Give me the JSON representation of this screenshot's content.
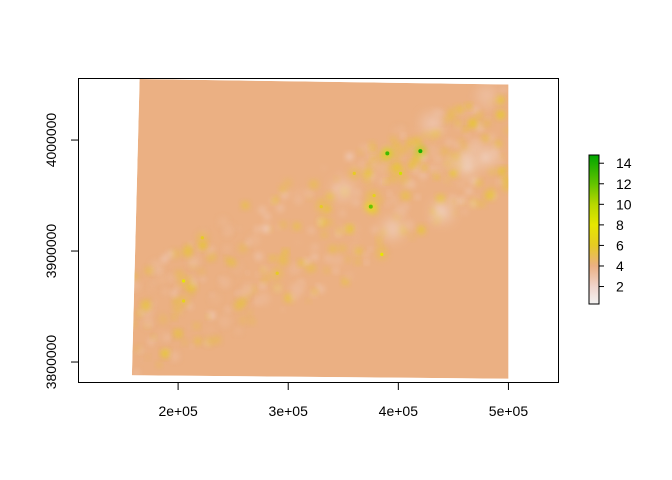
{
  "chart_data": {
    "type": "heatmap",
    "title": "",
    "xlabel": "",
    "ylabel": "",
    "xlim": [
      110000,
      545000
    ],
    "ylim": [
      3782000,
      4055000
    ],
    "x_ticks": [
      200000,
      300000,
      400000,
      500000
    ],
    "x_tick_labels": [
      "2e+05",
      "3e+05",
      "4e+05",
      "5e+05"
    ],
    "y_ticks": [
      3800000,
      3900000,
      4000000
    ],
    "y_tick_labels": [
      "3800000",
      "3900000",
      "4000000"
    ],
    "raster_extent": {
      "corners": [
        [
          165000,
          4055000
        ],
        [
          500000,
          4050000
        ],
        [
          500000,
          3785000
        ],
        [
          158000,
          3788000
        ]
      ]
    },
    "background_value": 4,
    "colorbar": {
      "range": [
        0.3,
        14.8
      ],
      "ticks": [
        2,
        4,
        6,
        8,
        10,
        12,
        14
      ],
      "tick_labels": [
        "2",
        "4",
        "6",
        "8",
        "10",
        "12",
        "14"
      ],
      "stops": [
        {
          "value": 0.3,
          "color": "#f2f2f2"
        },
        {
          "value": 2,
          "color": "#f1d4cc"
        },
        {
          "value": 4,
          "color": "#ebb083"
        },
        {
          "value": 6,
          "color": "#e6cb23"
        },
        {
          "value": 8,
          "color": "#e6e600"
        },
        {
          "value": 10,
          "color": "#b8d800"
        },
        {
          "value": 12,
          "color": "#63c300"
        },
        {
          "value": 14.8,
          "color": "#00a600"
        }
      ]
    },
    "hotspots": [
      {
        "x": 390000,
        "y": 3988000,
        "value": 13
      },
      {
        "x": 420000,
        "y": 3990000,
        "value": 14
      },
      {
        "x": 375000,
        "y": 3940000,
        "value": 12
      },
      {
        "x": 402000,
        "y": 3970000,
        "value": 9
      },
      {
        "x": 385000,
        "y": 3897000,
        "value": 8
      },
      {
        "x": 205000,
        "y": 3873000,
        "value": 8
      },
      {
        "x": 205000,
        "y": 3855000,
        "value": 6.5
      },
      {
        "x": 222000,
        "y": 3912000,
        "value": 6
      },
      {
        "x": 378000,
        "y": 3950000,
        "value": 6.5
      },
      {
        "x": 360000,
        "y": 3970000,
        "value": 6
      },
      {
        "x": 330000,
        "y": 3940000,
        "value": 6
      },
      {
        "x": 290000,
        "y": 3880000,
        "value": 6
      }
    ],
    "lowspots": [
      {
        "x": 462000,
        "y": 3978000,
        "value": 1
      },
      {
        "x": 480000,
        "y": 3985000,
        "value": 1.5
      },
      {
        "x": 440000,
        "y": 3935000,
        "value": 1.5
      },
      {
        "x": 430000,
        "y": 4015000,
        "value": 2
      },
      {
        "x": 395000,
        "y": 3920000,
        "value": 1.5
      },
      {
        "x": 350000,
        "y": 3955000,
        "value": 2
      },
      {
        "x": 480000,
        "y": 4040000,
        "value": 2.5
      }
    ]
  }
}
